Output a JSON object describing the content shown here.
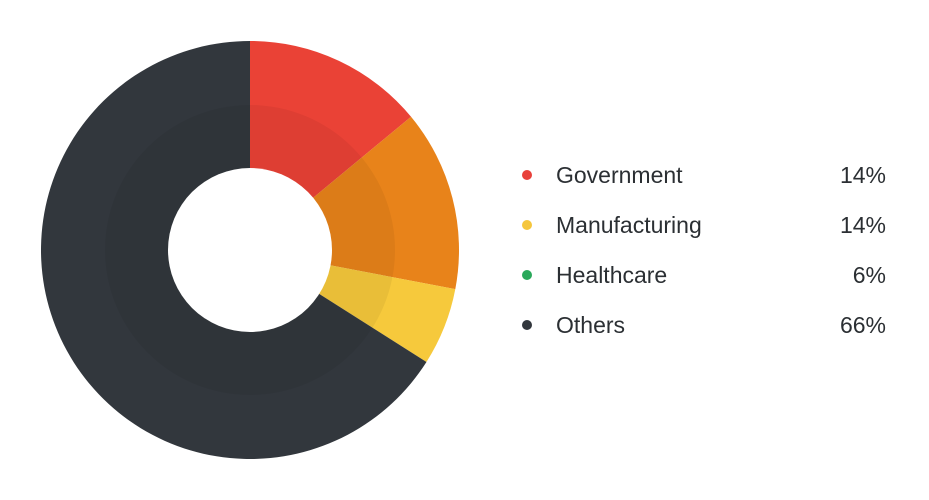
{
  "chart_data": {
    "type": "pie",
    "variant": "donut",
    "legend_placement": "right",
    "slices": [
      {
        "label": "Government",
        "value": 14,
        "value_text": "14%",
        "legend_color": "#e8403a",
        "slice_color": "#ea4236"
      },
      {
        "label": "Manufacturing",
        "value": 14,
        "value_text": "14%",
        "legend_color": "#f5c63c",
        "slice_color": "#e8831a"
      },
      {
        "label": "Healthcare",
        "value": 6,
        "value_text": "6%",
        "legend_color": "#2aa85a",
        "slice_color": "#f6c93c"
      },
      {
        "label": "Others",
        "value": 66,
        "value_text": "66%",
        "legend_color": "#31363c",
        "slice_color": "#32373d"
      }
    ]
  }
}
